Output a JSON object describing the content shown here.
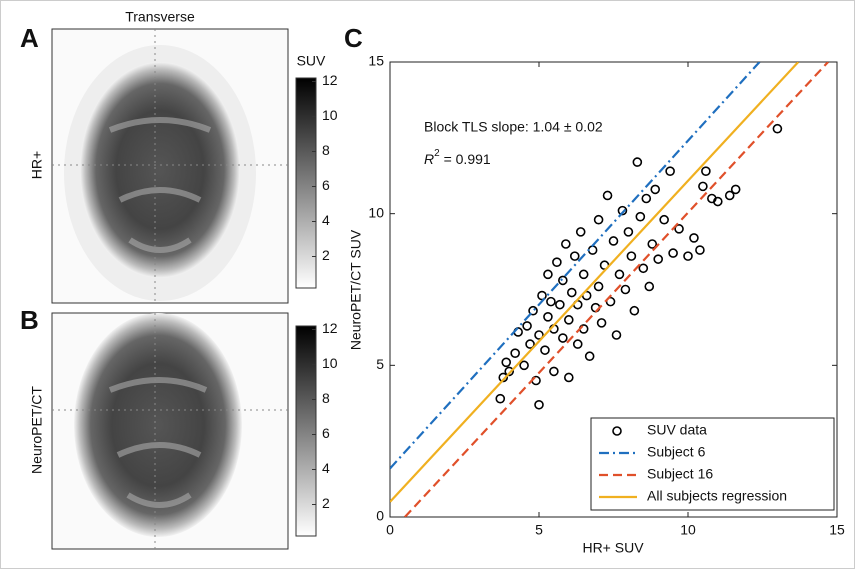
{
  "figure": {
    "panels": [
      {
        "letter": "A",
        "view": "Transverse",
        "row_label": "HR+",
        "colorbar_label": "SUV",
        "clim": [
          0.2,
          12.2
        ],
        "colorbar_ticks": [
          2,
          4,
          6,
          8,
          10,
          12
        ]
      },
      {
        "letter": "B",
        "row_label": "NeuroPET/CT",
        "clim": [
          0.2,
          12.2
        ],
        "colorbar_ticks": [
          2,
          4,
          6,
          8,
          10,
          12
        ]
      }
    ]
  },
  "chart_data": {
    "type": "scatter",
    "letter": "C",
    "x_label": "HR+ SUV",
    "y_label": "NeuroPET/CT SUV",
    "annotations": {
      "slope": "Block TLS slope: 1.04 ± 0.02",
      "r2_symbol": "R",
      "r2_exponent": "2",
      "r2_text": " = 0.991"
    },
    "xlim": [
      0,
      15
    ],
    "ylim": [
      0,
      15
    ],
    "xticks": [
      0,
      5,
      10,
      15
    ],
    "yticks": [
      0,
      5,
      10,
      15
    ],
    "legend": "lower right",
    "series": [
      {
        "name": "SUV data",
        "type": "scatter",
        "color": "#000000",
        "x": [
          3.7,
          3.8,
          3.9,
          4.0,
          4.2,
          4.3,
          4.5,
          4.6,
          4.7,
          4.8,
          4.9,
          5.0,
          5.0,
          5.1,
          5.2,
          5.3,
          5.3,
          5.4,
          5.5,
          5.5,
          5.6,
          5.7,
          5.8,
          5.8,
          5.9,
          6.0,
          6.0,
          6.1,
          6.2,
          6.3,
          6.3,
          6.4,
          6.5,
          6.5,
          6.6,
          6.7,
          6.8,
          6.9,
          7.0,
          7.0,
          7.1,
          7.2,
          7.3,
          7.4,
          7.5,
          7.6,
          7.7,
          7.8,
          7.9,
          8.0,
          8.1,
          8.2,
          8.3,
          8.4,
          8.5,
          8.6,
          8.7,
          8.8,
          8.9,
          9.0,
          9.2,
          9.4,
          9.5,
          9.7,
          10.0,
          10.2,
          10.4,
          10.5,
          10.6,
          10.8,
          11.0,
          11.4,
          11.6,
          13.0
        ],
        "values": [
          3.9,
          4.6,
          5.1,
          4.8,
          5.4,
          6.1,
          5.0,
          6.3,
          5.7,
          6.8,
          4.5,
          3.7,
          6.0,
          7.3,
          5.5,
          6.6,
          8.0,
          7.1,
          4.8,
          6.2,
          8.4,
          7.0,
          5.9,
          7.8,
          9.0,
          6.5,
          4.6,
          7.4,
          8.6,
          5.7,
          7.0,
          9.4,
          6.2,
          8.0,
          7.3,
          5.3,
          8.8,
          6.9,
          9.8,
          7.6,
          6.4,
          8.3,
          10.6,
          7.1,
          9.1,
          6.0,
          8.0,
          10.1,
          7.5,
          9.4,
          8.6,
          6.8,
          11.7,
          9.9,
          8.2,
          10.5,
          7.6,
          9.0,
          10.8,
          8.5,
          9.8,
          11.4,
          8.7,
          9.5,
          8.6,
          9.2,
          8.8,
          10.9,
          11.4,
          10.5,
          10.4,
          10.6,
          10.8,
          12.8
        ]
      },
      {
        "name": "Subject 6",
        "type": "line",
        "color": "#1f6fbf",
        "dash": "dashdot",
        "x": [
          0,
          12.4
        ],
        "values": [
          1.6,
          15
        ]
      },
      {
        "name": "Subject 16",
        "type": "line",
        "color": "#e0502a",
        "dash": "dashed",
        "x": [
          0.5,
          14.7
        ],
        "values": [
          0,
          15
        ]
      },
      {
        "name": "All subjects regression",
        "type": "line",
        "color": "#f0b020",
        "dash": "solid",
        "x": [
          0,
          13.7
        ],
        "values": [
          0.5,
          15
        ]
      }
    ]
  }
}
